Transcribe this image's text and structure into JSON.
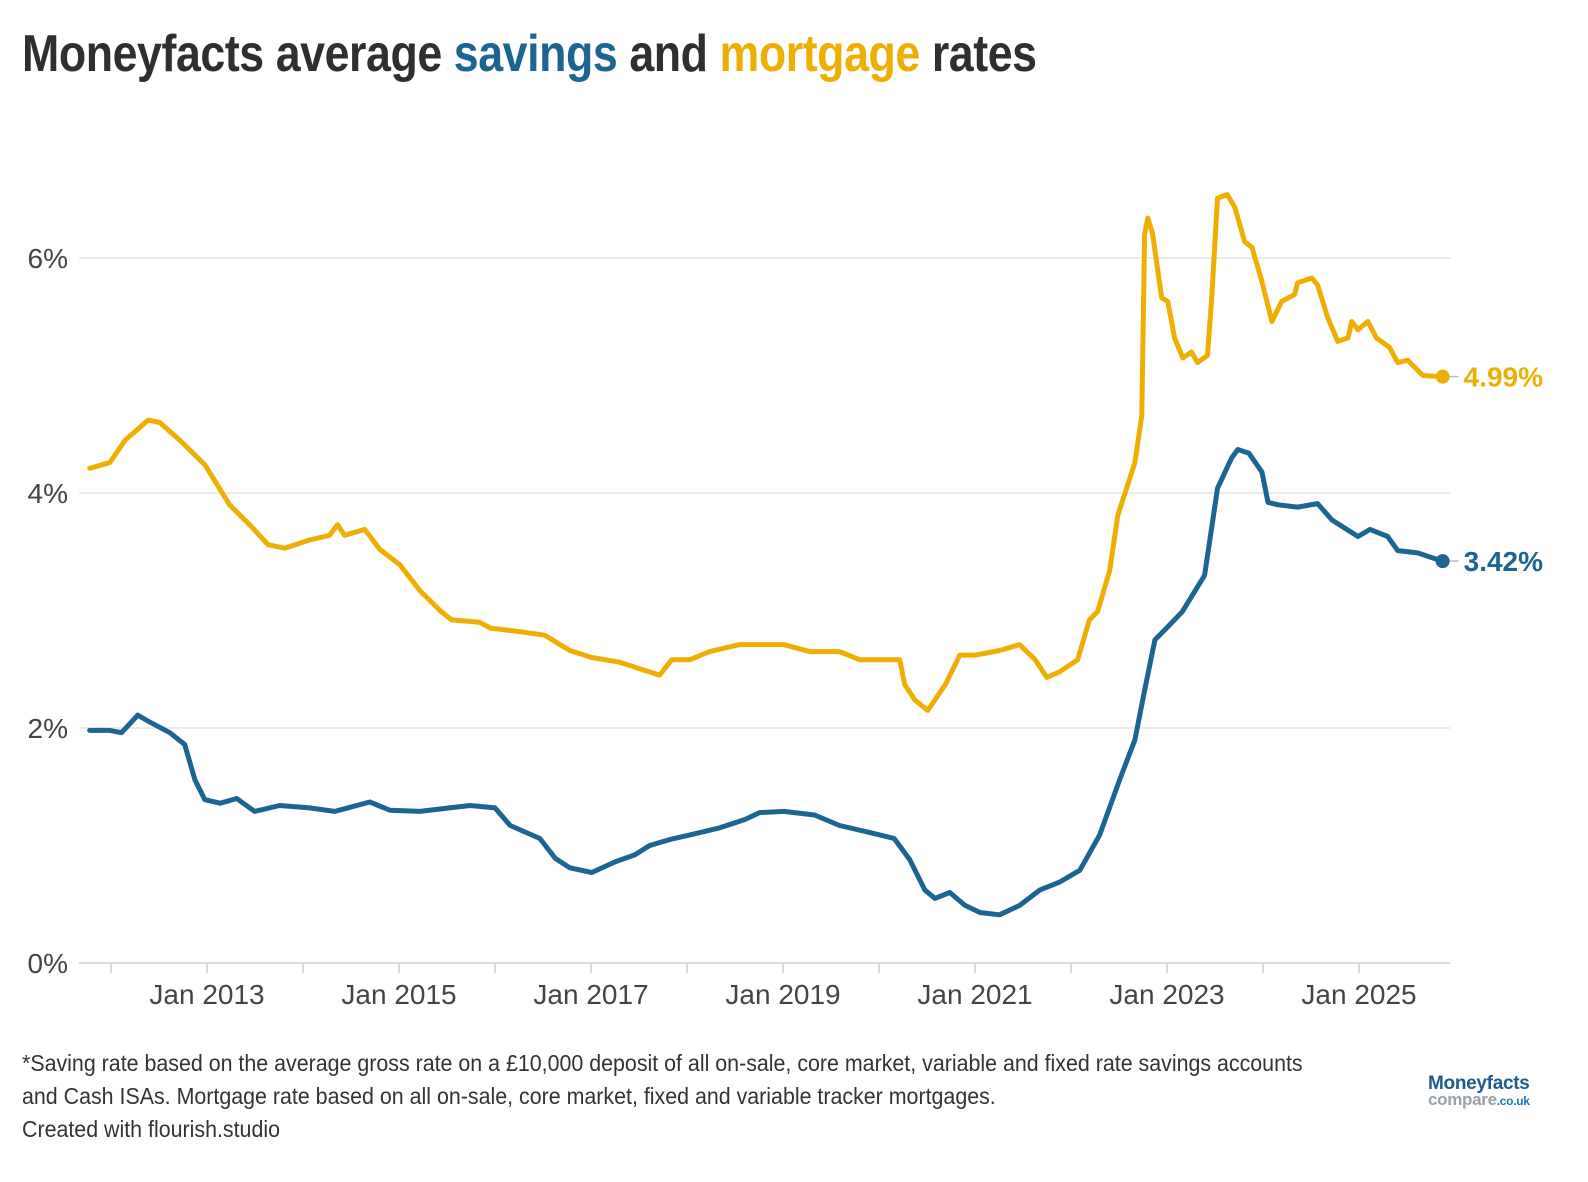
{
  "title": {
    "part1": "Moneyfacts average ",
    "savings": "savings",
    "part2": " and ",
    "mortgage": "mortgage",
    "part3": " rates"
  },
  "colors": {
    "savings": "#1c6591",
    "mortgage": "#eeaf05",
    "grid": "#e6e6e6",
    "axis": "#d0d0d0"
  },
  "footnote": {
    "line1": "*Saving rate based on the average gross rate on a £10,000 deposit of all on-sale, core market, variable and fixed rate savings accounts and Cash ISAs. Mortgage rate based on all on-sale, core market, fixed and variable tracker mortgages.",
    "line2": "Created with flourish.studio"
  },
  "logo": {
    "brand": "Moneyfacts",
    "sub": "compare",
    "domain": ".co.uk"
  },
  "chart_data": {
    "type": "line",
    "title": "Moneyfacts average savings and mortgage rates",
    "xlabel": "",
    "ylabel": "",
    "xlim": [
      "2011-09-01",
      "2025-12-15"
    ],
    "ylim": [
      0,
      7
    ],
    "yticks": [
      0,
      2,
      4,
      6
    ],
    "ytick_labels": [
      "0%",
      "2%",
      "4%",
      "6%"
    ],
    "xtick_labels": [
      "Jan 2013",
      "Jan 2015",
      "Jan 2017",
      "Jan 2019",
      "Jan 2021",
      "Jan 2023",
      "Jan 2025"
    ],
    "xtick_dates": [
      "2013-01-01",
      "2015-01-01",
      "2017-01-01",
      "2019-01-01",
      "2021-01-01",
      "2023-01-01",
      "2025-01-01"
    ],
    "xminor_dates": [
      "2012-01-01",
      "2014-01-01",
      "2016-01-01",
      "2018-01-01",
      "2020-01-01",
      "2022-01-01",
      "2024-01-01"
    ],
    "grid": true,
    "legend": "none (colored words in title)",
    "series": [
      {
        "name": "mortgage",
        "color": "#eeaf05",
        "end_label": "4.99%",
        "points": [
          [
            "2011-10-12",
            4.21
          ],
          [
            "2011-12-28",
            4.26
          ],
          [
            "2012-02-24",
            4.45
          ],
          [
            "2012-05-22",
            4.62
          ],
          [
            "2012-07-05",
            4.6
          ],
          [
            "2012-09-19",
            4.45
          ],
          [
            "2012-12-24",
            4.24
          ],
          [
            "2013-03-28",
            3.9
          ],
          [
            "2013-06-12",
            3.73
          ],
          [
            "2013-08-21",
            3.56
          ],
          [
            "2013-10-23",
            3.53
          ],
          [
            "2014-01-26",
            3.6
          ],
          [
            "2014-04-12",
            3.64
          ],
          [
            "2014-05-12",
            3.73
          ],
          [
            "2014-06-08",
            3.64
          ],
          [
            "2014-08-24",
            3.69
          ],
          [
            "2014-10-20",
            3.52
          ],
          [
            "2015-01-04",
            3.39
          ],
          [
            "2015-03-21",
            3.17
          ],
          [
            "2015-06-06",
            3.0
          ],
          [
            "2015-07-20",
            2.92
          ],
          [
            "2015-11-04",
            2.9
          ],
          [
            "2015-12-14",
            2.85
          ],
          [
            "2016-04-06",
            2.82
          ],
          [
            "2016-07-09",
            2.79
          ],
          [
            "2016-10-12",
            2.66
          ],
          [
            "2017-01-04",
            2.6
          ],
          [
            "2017-04-20",
            2.56
          ],
          [
            "2017-07-24",
            2.49
          ],
          [
            "2017-09-19",
            2.45
          ],
          [
            "2017-11-04",
            2.58
          ],
          [
            "2018-01-12",
            2.58
          ],
          [
            "2018-03-28",
            2.65
          ],
          [
            "2018-07-20",
            2.71
          ],
          [
            "2019-01-04",
            2.71
          ],
          [
            "2019-04-12",
            2.65
          ],
          [
            "2019-08-04",
            2.65
          ],
          [
            "2019-10-20",
            2.58
          ],
          [
            "2020-03-20",
            2.58
          ],
          [
            "2020-04-08",
            2.37
          ],
          [
            "2020-05-16",
            2.24
          ],
          [
            "2020-07-05",
            2.15
          ],
          [
            "2020-09-10",
            2.37
          ],
          [
            "2020-11-04",
            2.62
          ],
          [
            "2021-01-04",
            2.62
          ],
          [
            "2021-04-04",
            2.66
          ],
          [
            "2021-06-20",
            2.71
          ],
          [
            "2021-08-18",
            2.58
          ],
          [
            "2021-10-01",
            2.43
          ],
          [
            "2021-11-20",
            2.48
          ],
          [
            "2022-01-26",
            2.58
          ],
          [
            "2022-03-12",
            2.92
          ],
          [
            "2022-04-12",
            2.99
          ],
          [
            "2022-05-28",
            3.34
          ],
          [
            "2022-06-28",
            3.81
          ],
          [
            "2022-09-01",
            4.26
          ],
          [
            "2022-09-27",
            4.66
          ],
          [
            "2022-10-08",
            6.2
          ],
          [
            "2022-10-20",
            6.34
          ],
          [
            "2022-11-07",
            6.21
          ],
          [
            "2022-12-12",
            5.66
          ],
          [
            "2023-01-04",
            5.63
          ],
          [
            "2023-01-30",
            5.32
          ],
          [
            "2023-03-02",
            5.15
          ],
          [
            "2023-04-04",
            5.2
          ],
          [
            "2023-04-27",
            5.11
          ],
          [
            "2023-06-04",
            5.17
          ],
          [
            "2023-06-20",
            5.66
          ],
          [
            "2023-07-12",
            6.51
          ],
          [
            "2023-08-18",
            6.54
          ],
          [
            "2023-09-16",
            6.43
          ],
          [
            "2023-10-23",
            6.14
          ],
          [
            "2023-11-20",
            6.09
          ],
          [
            "2023-12-28",
            5.8
          ],
          [
            "2024-02-04",
            5.46
          ],
          [
            "2024-03-12",
            5.63
          ],
          [
            "2024-05-01",
            5.69
          ],
          [
            "2024-05-12",
            5.79
          ],
          [
            "2024-07-05",
            5.83
          ],
          [
            "2024-07-27",
            5.77
          ],
          [
            "2024-09-04",
            5.49
          ],
          [
            "2024-10-12",
            5.29
          ],
          [
            "2024-11-20",
            5.32
          ],
          [
            "2024-12-04",
            5.46
          ],
          [
            "2024-12-28",
            5.39
          ],
          [
            "2025-02-04",
            5.46
          ],
          [
            "2025-03-08",
            5.32
          ],
          [
            "2025-04-27",
            5.24
          ],
          [
            "2025-05-28",
            5.11
          ],
          [
            "2025-07-05",
            5.13
          ],
          [
            "2025-09-01",
            5.0
          ],
          [
            "2025-11-15",
            4.99
          ]
        ]
      },
      {
        "name": "savings",
        "color": "#1c6591",
        "end_label": "3.42%",
        "points": [
          [
            "2011-10-12",
            1.98
          ],
          [
            "2011-12-28",
            1.98
          ],
          [
            "2012-02-10",
            1.96
          ],
          [
            "2012-04-12",
            2.11
          ],
          [
            "2012-05-28",
            2.05
          ],
          [
            "2012-08-12",
            1.96
          ],
          [
            "2012-10-08",
            1.86
          ],
          [
            "2012-11-16",
            1.56
          ],
          [
            "2012-12-24",
            1.39
          ],
          [
            "2013-02-20",
            1.36
          ],
          [
            "2013-04-24",
            1.4
          ],
          [
            "2013-07-01",
            1.29
          ],
          [
            "2013-10-04",
            1.34
          ],
          [
            "2014-01-26",
            1.32
          ],
          [
            "2014-05-01",
            1.29
          ],
          [
            "2014-09-12",
            1.37
          ],
          [
            "2014-11-28",
            1.3
          ],
          [
            "2015-03-21",
            1.29
          ],
          [
            "2015-07-12",
            1.32
          ],
          [
            "2015-09-28",
            1.34
          ],
          [
            "2016-01-01",
            1.32
          ],
          [
            "2016-02-28",
            1.17
          ],
          [
            "2016-06-20",
            1.06
          ],
          [
            "2016-08-18",
            0.89
          ],
          [
            "2016-10-12",
            0.81
          ],
          [
            "2017-01-04",
            0.77
          ],
          [
            "2017-04-01",
            0.86
          ],
          [
            "2017-06-16",
            0.92
          ],
          [
            "2017-08-12",
            1.0
          ],
          [
            "2017-10-27",
            1.05
          ],
          [
            "2018-01-12",
            1.09
          ],
          [
            "2018-05-04",
            1.15
          ],
          [
            "2018-08-08",
            1.22
          ],
          [
            "2018-10-04",
            1.28
          ],
          [
            "2019-01-04",
            1.29
          ],
          [
            "2019-05-01",
            1.26
          ],
          [
            "2019-08-04",
            1.17
          ],
          [
            "2019-11-28",
            1.11
          ],
          [
            "2020-02-28",
            1.06
          ],
          [
            "2020-04-27",
            0.88
          ],
          [
            "2020-06-24",
            0.62
          ],
          [
            "2020-08-01",
            0.55
          ],
          [
            "2020-09-27",
            0.6
          ],
          [
            "2020-11-24",
            0.49
          ],
          [
            "2021-01-20",
            0.43
          ],
          [
            "2021-04-04",
            0.41
          ],
          [
            "2021-06-20",
            0.49
          ],
          [
            "2021-09-04",
            0.62
          ],
          [
            "2021-11-20",
            0.69
          ],
          [
            "2022-02-04",
            0.79
          ],
          [
            "2022-04-20",
            1.09
          ],
          [
            "2022-07-05",
            1.56
          ],
          [
            "2022-09-01",
            1.9
          ],
          [
            "2022-10-08",
            2.32
          ],
          [
            "2022-11-16",
            2.75
          ],
          [
            "2023-01-12",
            2.88
          ],
          [
            "2023-02-28",
            2.99
          ],
          [
            "2023-05-24",
            3.3
          ],
          [
            "2023-07-12",
            4.04
          ],
          [
            "2023-09-04",
            4.3
          ],
          [
            "2023-09-27",
            4.37
          ],
          [
            "2023-11-08",
            4.34
          ],
          [
            "2023-12-28",
            4.18
          ],
          [
            "2024-01-20",
            3.92
          ],
          [
            "2024-02-28",
            3.9
          ],
          [
            "2024-05-12",
            3.88
          ],
          [
            "2024-07-27",
            3.91
          ],
          [
            "2024-09-20",
            3.77
          ],
          [
            "2024-12-28",
            3.63
          ],
          [
            "2025-02-12",
            3.69
          ],
          [
            "2025-04-20",
            3.63
          ],
          [
            "2025-05-28",
            3.51
          ],
          [
            "2025-08-12",
            3.49
          ],
          [
            "2025-11-15",
            3.42
          ]
        ]
      }
    ]
  }
}
